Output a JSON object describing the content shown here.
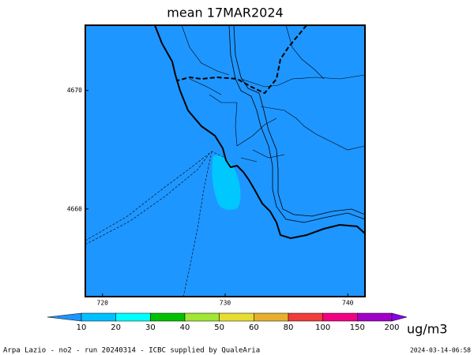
{
  "map": {
    "title": "mean 17MAR2024",
    "xlim": [
      718.6,
      741.4
    ],
    "xticks": [
      720,
      730,
      740
    ],
    "ylim": [
      4652.6,
      4675.5
    ],
    "yticks": [
      4660,
      4670
    ],
    "background": "#1e96ff",
    "plume_color": "#00c8ff",
    "colorbar": {
      "levels": [
        10,
        20,
        30,
        40,
        50,
        60,
        80,
        100,
        150,
        200
      ],
      "colors": [
        "#1e96ff",
        "#00c0ff",
        "#00ffff",
        "#00c000",
        "#a0e632",
        "#e6dc32",
        "#e6af2d",
        "#f03c3c",
        "#f00082",
        "#a000c8",
        "#8c00e6"
      ],
      "unit": "ug/m3"
    },
    "footer_left": "Arpa Lazio - no2 - run 20240314 - ICBC supplied by QualeAria",
    "footer_right": "2024-03-14-06:58"
  }
}
